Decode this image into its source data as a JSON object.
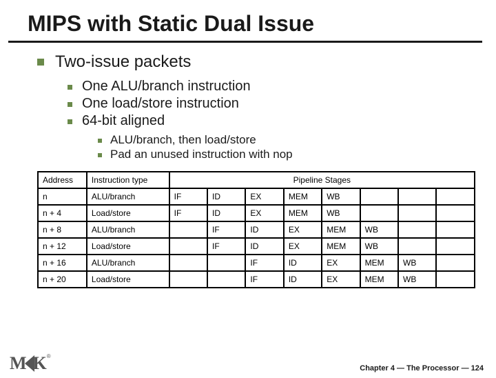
{
  "title": "MIPS with Static Dual Issue",
  "bullet1": "Two-issue packets",
  "sub": {
    "b1": "One ALU/branch instruction",
    "b2": "One load/store instruction",
    "b3": "64-bit aligned"
  },
  "subsub": {
    "b1": "ALU/branch, then load/store",
    "b2": "Pad an unused instruction with nop"
  },
  "table": {
    "headers": {
      "addr": "Address",
      "inst": "Instruction type",
      "pipe": "Pipeline Stages"
    },
    "rows": [
      {
        "addr": "n",
        "inst": "ALU/branch",
        "stages": [
          "IF",
          "ID",
          "EX",
          "MEM",
          "WB",
          "",
          "",
          ""
        ]
      },
      {
        "addr": "n + 4",
        "inst": "Load/store",
        "stages": [
          "IF",
          "ID",
          "EX",
          "MEM",
          "WB",
          "",
          "",
          ""
        ]
      },
      {
        "addr": "n + 8",
        "inst": "ALU/branch",
        "stages": [
          "",
          "IF",
          "ID",
          "EX",
          "MEM",
          "WB",
          "",
          ""
        ]
      },
      {
        "addr": "n + 12",
        "inst": "Load/store",
        "stages": [
          "",
          "IF",
          "ID",
          "EX",
          "MEM",
          "WB",
          "",
          ""
        ]
      },
      {
        "addr": "n + 16",
        "inst": "ALU/branch",
        "stages": [
          "",
          "",
          "IF",
          "ID",
          "EX",
          "MEM",
          "WB",
          ""
        ]
      },
      {
        "addr": "n + 20",
        "inst": "Load/store",
        "stages": [
          "",
          "",
          "IF",
          "ID",
          "EX",
          "MEM",
          "WB",
          ""
        ]
      }
    ]
  },
  "footer": "Chapter 4 — The Processor — 124",
  "logo": {
    "m": "M",
    "k": "K",
    "reg": "®"
  }
}
